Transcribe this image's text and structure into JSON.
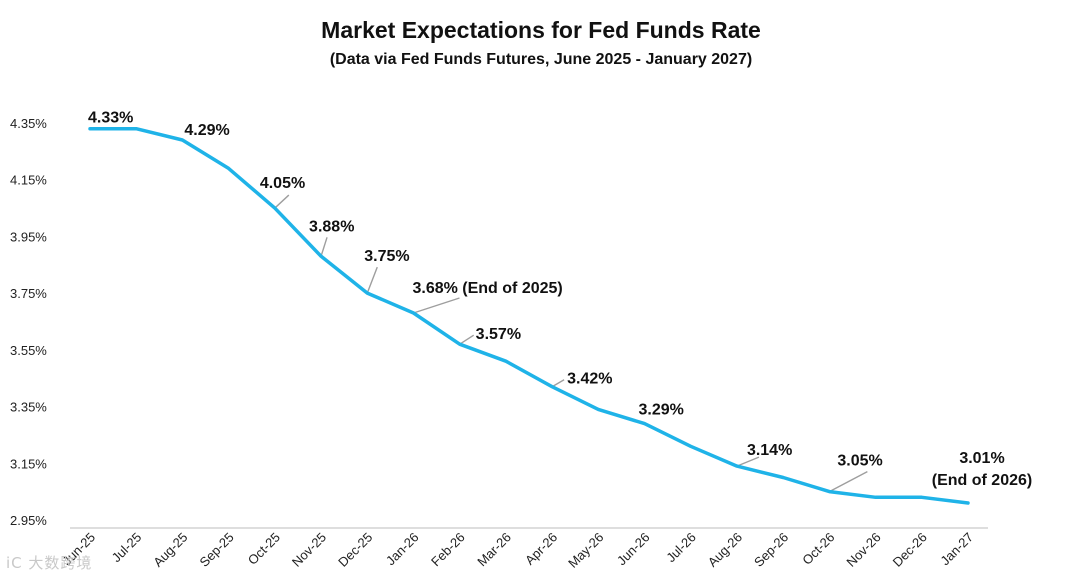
{
  "chart_data": {
    "type": "line",
    "title": "Market Expectations for Fed Funds Rate",
    "subtitle": "(Data via Fed Funds Futures, June 2025 - January 2027)",
    "xlabel": "",
    "ylabel": "",
    "ylim": [
      2.95,
      4.4
    ],
    "yticks": [
      "4.35%",
      "4.15%",
      "3.95%",
      "3.75%",
      "3.55%",
      "3.35%",
      "3.15%",
      "2.95%"
    ],
    "ytick_values": [
      4.35,
      4.15,
      3.95,
      3.75,
      3.55,
      3.35,
      3.15,
      2.95
    ],
    "grid": false,
    "legend": "none",
    "series_color": "#1fb3e8",
    "categories": [
      "Jun-25",
      "Jul-25",
      "Aug-25",
      "Sep-25",
      "Oct-25",
      "Nov-25",
      "Dec-25",
      "Jan-26",
      "Feb-26",
      "Mar-26",
      "Apr-26",
      "May-26",
      "Jun-26",
      "Jul-26",
      "Aug-26",
      "Sep-26",
      "Oct-26",
      "Nov-26",
      "Dec-26",
      "Jan-27"
    ],
    "series": [
      {
        "name": "Fed Funds Futures",
        "values": [
          4.33,
          4.33,
          4.29,
          4.19,
          4.05,
          3.88,
          3.75,
          3.68,
          3.57,
          3.51,
          3.42,
          3.34,
          3.29,
          3.21,
          3.14,
          3.1,
          3.05,
          3.03,
          3.03,
          3.01
        ]
      }
    ],
    "annotations": [
      {
        "index": 0,
        "text": "4.33%"
      },
      {
        "index": 2,
        "text": "4.29%"
      },
      {
        "index": 4,
        "text": "4.05%"
      },
      {
        "index": 5,
        "text": "3.88%"
      },
      {
        "index": 6,
        "text": "3.75%"
      },
      {
        "index": 7,
        "text": "3.68% (End of 2025)"
      },
      {
        "index": 8,
        "text": "3.57%"
      },
      {
        "index": 10,
        "text": "3.42%"
      },
      {
        "index": 12,
        "text": "3.29%"
      },
      {
        "index": 14,
        "text": "3.14%"
      },
      {
        "index": 16,
        "text": "3.05%"
      },
      {
        "index": 19,
        "text": "3.01%",
        "text2": "(End of 2026)"
      }
    ]
  },
  "watermark": "iC 大数跨境"
}
